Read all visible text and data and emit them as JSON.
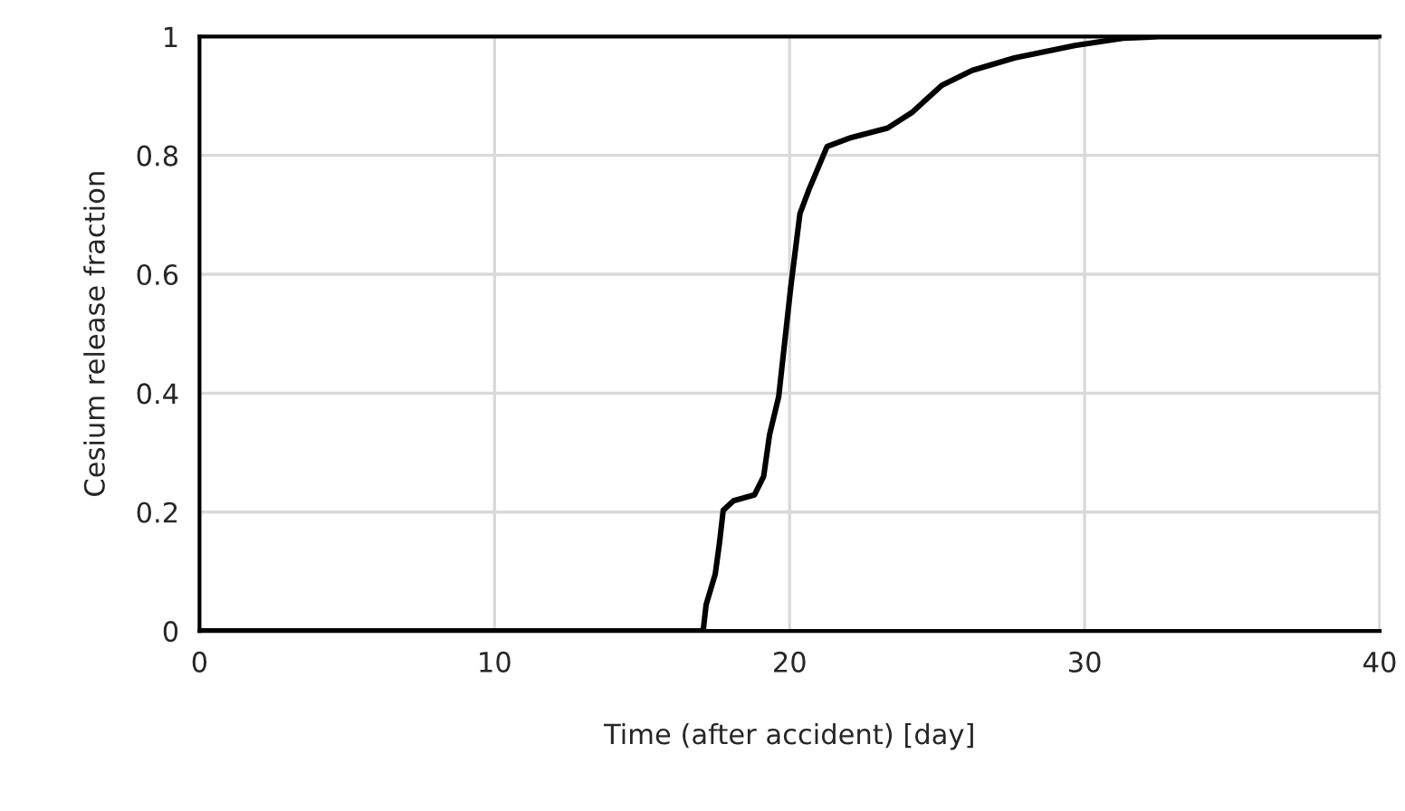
{
  "chart_data": {
    "type": "line",
    "xlabel": "Time (after accident) [day]",
    "ylabel": "Cesium release fraction",
    "series": [
      {
        "color": "#000000",
        "x": [
          0,
          5,
          10,
          15,
          17.07,
          17.17,
          17.48,
          17.62,
          17.75,
          18.1,
          18.81,
          19.12,
          19.32,
          19.63,
          20.04,
          20.35,
          20.66,
          21.27,
          22.09,
          23.32,
          24.14,
          25.16,
          26.19,
          27.62,
          29.67,
          31.3,
          32.7,
          36,
          40
        ],
        "values": [
          0,
          0,
          0,
          0,
          0,
          0.044,
          0.096,
          0.147,
          0.203,
          0.219,
          0.229,
          0.26,
          0.33,
          0.394,
          0.579,
          0.702,
          0.743,
          0.815,
          0.83,
          0.846,
          0.872,
          0.918,
          0.943,
          0.964,
          0.985,
          0.997,
          1,
          1,
          1
        ]
      }
    ],
    "xlim": [
      0,
      40
    ],
    "xticks": [
      0,
      10,
      20,
      30,
      40
    ],
    "ylim": [
      0,
      1
    ],
    "yticks": [
      0,
      {
        "value": 0.2,
        "label": "0.2"
      },
      {
        "value": 0.4,
        "label": "0.4"
      },
      {
        "value": 0.6,
        "label": "0.6"
      },
      {
        "value": 0.8,
        "label": "0.8"
      },
      1
    ],
    "grid": true,
    "line_style": "solid",
    "marker": "none"
  }
}
